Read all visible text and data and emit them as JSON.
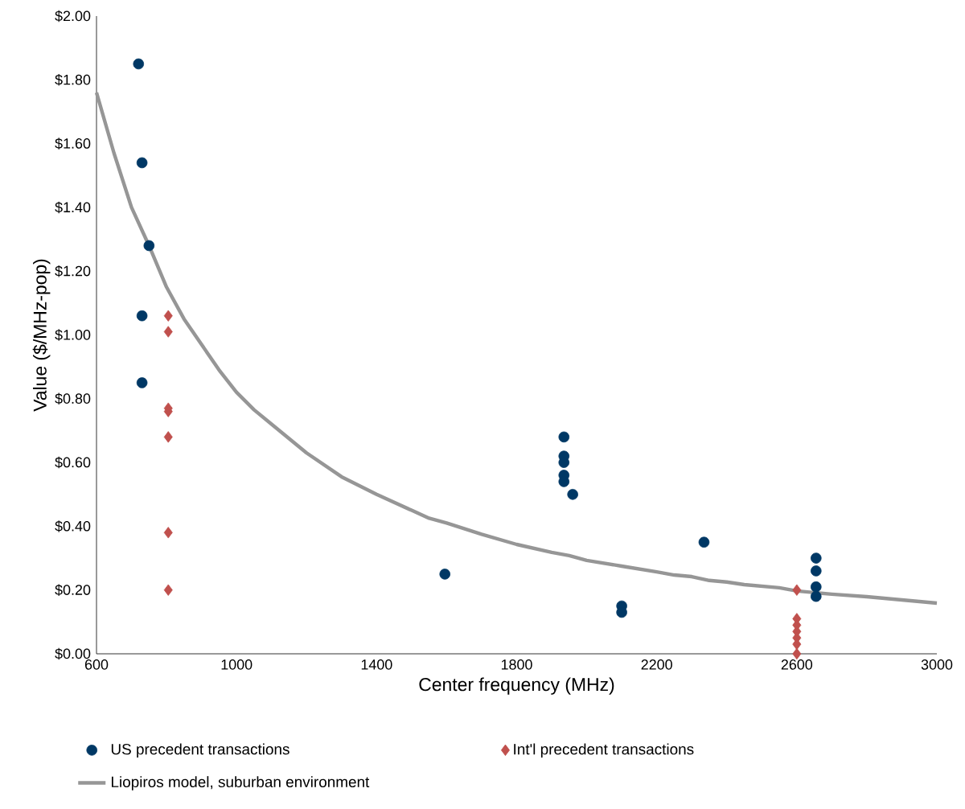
{
  "chart_data": {
    "type": "scatter",
    "xlabel": "Center frequency (MHz)",
    "ylabel": "Value ($/MHz-pop)",
    "xlim": [
      600,
      3000
    ],
    "xticks": [
      600,
      1000,
      1400,
      1800,
      2200,
      2600,
      3000
    ],
    "ylim": [
      0,
      2
    ],
    "yticks": [
      {
        "value": 0,
        "label": "$0.00"
      },
      {
        "value": 0.2,
        "label": "$0.20"
      },
      {
        "value": 0.4,
        "label": "$0.40"
      },
      {
        "value": 0.6,
        "label": "$0.60"
      },
      {
        "value": 0.8,
        "label": "$0.80"
      },
      {
        "value": 1.0,
        "label": "$1.00"
      },
      {
        "value": 1.2,
        "label": "$1.20"
      },
      {
        "value": 1.4,
        "label": "$1.40"
      },
      {
        "value": 1.6,
        "label": "$1.60"
      },
      {
        "value": 1.8,
        "label": "$1.80"
      },
      {
        "value": 2.0,
        "label": "$2.00"
      }
    ],
    "grid": false,
    "legend": "bottom",
    "series": [
      {
        "name": "US precedent transactions",
        "marker": "circle",
        "color": "#003865",
        "x": [
          720,
          730,
          750,
          730,
          730,
          1935,
          1935,
          1935,
          1935,
          1935,
          1960,
          1595,
          2100,
          2100,
          2335,
          2655,
          2655,
          2655,
          2655
        ],
        "values": [
          1.85,
          1.54,
          1.28,
          1.06,
          0.85,
          0.68,
          0.62,
          0.6,
          0.56,
          0.54,
          0.5,
          0.25,
          0.15,
          0.13,
          0.35,
          0.3,
          0.26,
          0.21,
          0.18
        ]
      },
      {
        "name": "Int'l precedent transactions",
        "marker": "diamond",
        "color": "#c0504d",
        "x": [
          805,
          805,
          805,
          805,
          805,
          805,
          805,
          2600,
          2600,
          2600,
          2600,
          2600,
          2600,
          2600
        ],
        "values": [
          1.06,
          1.01,
          0.77,
          0.76,
          0.68,
          0.38,
          0.2,
          0.2,
          0.11,
          0.09,
          0.07,
          0.05,
          0.03,
          0.0
        ]
      },
      {
        "name": "Liopiros model, suburban environment",
        "type": "line",
        "marker": "none",
        "color": "#969696",
        "x": [
          600,
          650,
          700,
          750,
          800,
          850,
          950,
          1000,
          1050,
          1100,
          1200,
          1300,
          1400,
          1500,
          1550,
          1600,
          1700,
          1800,
          1900,
          1950,
          2000,
          2100,
          2200,
          2250,
          2300,
          2350,
          2400,
          2450,
          2550,
          2600,
          2700,
          2800,
          2900,
          3000
        ],
        "values": [
          1.76,
          1.57,
          1.4,
          1.28,
          1.15,
          1.05,
          0.89,
          0.82,
          0.765,
          0.72,
          0.63,
          0.555,
          0.5,
          0.45,
          0.425,
          0.41,
          0.375,
          0.343,
          0.318,
          0.308,
          0.293,
          0.275,
          0.257,
          0.247,
          0.242,
          0.23,
          0.225,
          0.217,
          0.207,
          0.197,
          0.187,
          0.179,
          0.169,
          0.159
        ]
      }
    ]
  }
}
